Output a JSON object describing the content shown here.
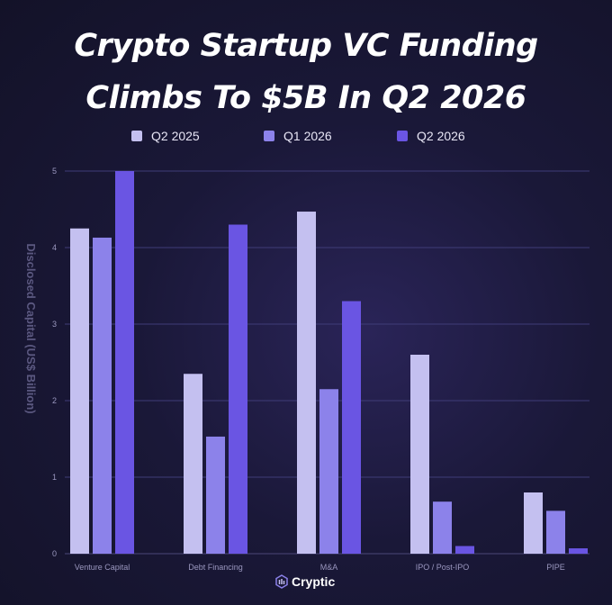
{
  "chart_data": {
    "type": "bar",
    "title_lines": [
      "Crypto Startup VC Funding",
      "Climbs To $5B In Q2 2026"
    ],
    "xlabel": "",
    "ylabel": "Disclosed Capital (US$ Billion)",
    "ylim": [
      0,
      5
    ],
    "yticks": [
      "0",
      "1",
      "2",
      "3",
      "4",
      "5"
    ],
    "grid": true,
    "legend_position": "top",
    "categories": [
      "Venture Capital",
      "Debt Financing",
      "M&A",
      "IPO / Post-IPO",
      "PIPE"
    ],
    "series": [
      {
        "name": "Q2 2025",
        "color": "#c4c0f0",
        "values": [
          4.25,
          2.35,
          4.47,
          2.6,
          0.8
        ]
      },
      {
        "name": "Q1 2026",
        "color": "#8c82ea",
        "values": [
          4.13,
          1.53,
          2.15,
          0.68,
          0.56
        ]
      },
      {
        "name": "Q2 2026",
        "color": "#6a55e3",
        "values": [
          5.0,
          4.3,
          3.3,
          0.1,
          0.07
        ]
      }
    ]
  },
  "brand": {
    "name": "Cryptic",
    "icon": "cryptic-logo-icon"
  }
}
